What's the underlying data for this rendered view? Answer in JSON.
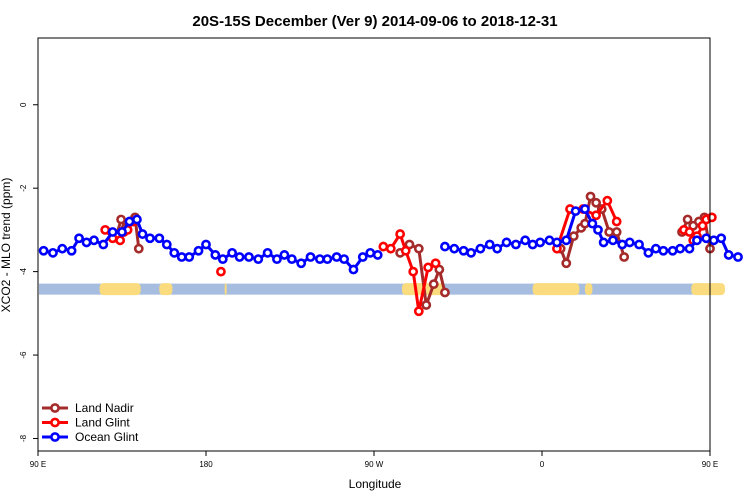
{
  "chart_data": {
    "type": "line",
    "title": "20S-15S December (Ver 9)   2014-09-06 to 2018-12-31",
    "xlabel": "Longitude",
    "ylabel": "XCO2 - MLO trend (ppm)",
    "xlim": [
      90,
      450
    ],
    "ylim": [
      -8.3,
      1.6
    ],
    "x_ticks": [
      {
        "value": 90,
        "label": "90 E"
      },
      {
        "value": 180,
        "label": "180"
      },
      {
        "value": 270,
        "label": "90 W"
      },
      {
        "value": 360,
        "label": "0"
      },
      {
        "value": 450,
        "label": "90 E"
      },
      {
        "value": 540,
        "label": "180"
      }
    ],
    "y_ticks": [
      {
        "value": 0,
        "label": "0"
      },
      {
        "value": -2,
        "label": "-2"
      },
      {
        "value": -4,
        "label": "-4"
      },
      {
        "value": -6,
        "label": "-6"
      },
      {
        "value": -8,
        "label": "-8"
      }
    ],
    "grid": false,
    "legend_position": "bottom-left",
    "land_mask": {
      "y": -4.42,
      "ocean_color": "#a6bde0",
      "land_color": "#fadb7e",
      "land_segments": [
        [
          123,
          145
        ],
        [
          155,
          162
        ],
        [
          190,
          190
        ],
        [
          285,
          308
        ],
        [
          355,
          380
        ],
        [
          383,
          387
        ],
        [
          440,
          458
        ]
      ]
    },
    "series": [
      {
        "name": "Land Nadir",
        "color": "#a52a2a",
        "segments": [
          [
            [
              132,
              -3.15
            ],
            [
              134.5,
              -2.75
            ],
            [
              137,
              -2.95
            ],
            [
              139.5,
              -2.8
            ],
            [
              142,
              -2.7
            ],
            [
              144,
              -3.45
            ]
          ],
          [
            [
              284,
              -3.55
            ],
            [
              289,
              -3.35
            ],
            [
              294,
              -3.45
            ],
            [
              298,
              -4.8
            ],
            [
              302,
              -4.3
            ],
            [
              305,
              -3.95
            ],
            [
              308,
              -4.5
            ]
          ],
          [
            [
              370,
              -3.45
            ],
            [
              373,
              -3.8
            ],
            [
              377,
              -3.15
            ],
            [
              381,
              -2.95
            ],
            [
              383,
              -2.85
            ],
            [
              386,
              -2.2
            ],
            [
              389,
              -2.35
            ],
            [
              392,
              -2.5
            ],
            [
              396,
              -3.05
            ],
            [
              400,
              -3.05
            ],
            [
              404,
              -3.65
            ]
          ],
          [
            [
              435,
              -3.05
            ],
            [
              438,
              -2.75
            ],
            [
              441,
              -2.9
            ],
            [
              444,
              -2.8
            ],
            [
              447,
              -2.7
            ],
            [
              450,
              -3.45
            ]
          ]
        ]
      },
      {
        "name": "Land Glint",
        "color": "#ff0000",
        "segments": [
          [
            [
              126,
              -3.0
            ],
            [
              130,
              -3.2
            ],
            [
              134,
              -3.25
            ],
            [
              136,
              -3.05
            ],
            [
              138,
              -3.0
            ],
            [
              141,
              -2.8
            ]
          ],
          [
            [
              188,
              -4.0
            ]
          ],
          [
            [
              275,
              -3.4
            ],
            [
              279,
              -3.45
            ],
            [
              284,
              -3.1
            ],
            [
              287,
              -3.5
            ],
            [
              291,
              -4.0
            ],
            [
              294,
              -4.95
            ],
            [
              299,
              -3.9
            ],
            [
              303,
              -3.8
            ]
          ],
          [
            [
              368,
              -3.45
            ],
            [
              375,
              -2.5
            ],
            [
              382,
              -2.5
            ],
            [
              389,
              -2.65
            ],
            [
              395,
              -2.3
            ],
            [
              400,
              -2.8
            ]
          ],
          [
            [
              436,
              -3.0
            ],
            [
              439,
              -3.05
            ],
            [
              441,
              -3.25
            ],
            [
              443,
              -3.15
            ],
            [
              446,
              -2.9
            ],
            [
              448,
              -2.75
            ],
            [
              451,
              -2.7
            ]
          ]
        ]
      },
      {
        "name": "Ocean Glint",
        "color": "#0000ff",
        "segments": [
          [
            [
              93,
              -3.5
            ],
            [
              98,
              -3.55
            ],
            [
              103,
              -3.45
            ],
            [
              108,
              -3.5
            ],
            [
              112,
              -3.2
            ],
            [
              116,
              -3.3
            ],
            [
              120,
              -3.25
            ],
            [
              125,
              -3.35
            ],
            [
              130,
              -3.05
            ],
            [
              135,
              -3.05
            ],
            [
              139,
              -2.8
            ],
            [
              143,
              -2.75
            ],
            [
              146,
              -3.1
            ],
            [
              150,
              -3.2
            ],
            [
              155,
              -3.2
            ],
            [
              159,
              -3.35
            ],
            [
              163,
              -3.55
            ],
            [
              167,
              -3.65
            ],
            [
              171,
              -3.65
            ],
            [
              176,
              -3.5
            ],
            [
              180,
              -3.35
            ],
            [
              185,
              -3.6
            ],
            [
              189,
              -3.7
            ],
            [
              194,
              -3.55
            ],
            [
              198,
              -3.65
            ],
            [
              203,
              -3.65
            ],
            [
              208,
              -3.7
            ],
            [
              213,
              -3.55
            ],
            [
              218,
              -3.7
            ],
            [
              222,
              -3.6
            ],
            [
              226,
              -3.7
            ],
            [
              231,
              -3.8
            ],
            [
              236,
              -3.65
            ],
            [
              241,
              -3.7
            ],
            [
              245,
              -3.7
            ],
            [
              250,
              -3.65
            ],
            [
              254,
              -3.7
            ],
            [
              259,
              -3.95
            ],
            [
              264,
              -3.65
            ],
            [
              268,
              -3.55
            ],
            [
              272,
              -3.6
            ]
          ],
          [
            [
              308,
              -3.4
            ],
            [
              313,
              -3.45
            ],
            [
              318,
              -3.5
            ],
            [
              322,
              -3.55
            ],
            [
              327,
              -3.45
            ],
            [
              332,
              -3.35
            ],
            [
              336,
              -3.45
            ],
            [
              341,
              -3.3
            ],
            [
              346,
              -3.35
            ],
            [
              351,
              -3.25
            ],
            [
              355,
              -3.35
            ],
            [
              359,
              -3.3
            ],
            [
              364,
              -3.25
            ],
            [
              368,
              -3.3
            ],
            [
              373,
              -3.25
            ],
            [
              378,
              -2.55
            ],
            [
              383,
              -2.5
            ],
            [
              387,
              -2.85
            ],
            [
              390,
              -3.0
            ],
            [
              393,
              -3.3
            ],
            [
              398,
              -3.25
            ],
            [
              403,
              -3.35
            ],
            [
              407,
              -3.3
            ],
            [
              412,
              -3.35
            ],
            [
              417,
              -3.55
            ],
            [
              421,
              -3.45
            ],
            [
              425,
              -3.5
            ],
            [
              430,
              -3.5
            ],
            [
              434,
              -3.45
            ],
            [
              439,
              -3.45
            ],
            [
              443,
              -3.25
            ],
            [
              448,
              -3.2
            ],
            [
              452,
              -3.25
            ],
            [
              456,
              -3.2
            ],
            [
              460,
              -3.6
            ],
            [
              465,
              -3.65
            ]
          ]
        ]
      }
    ]
  }
}
